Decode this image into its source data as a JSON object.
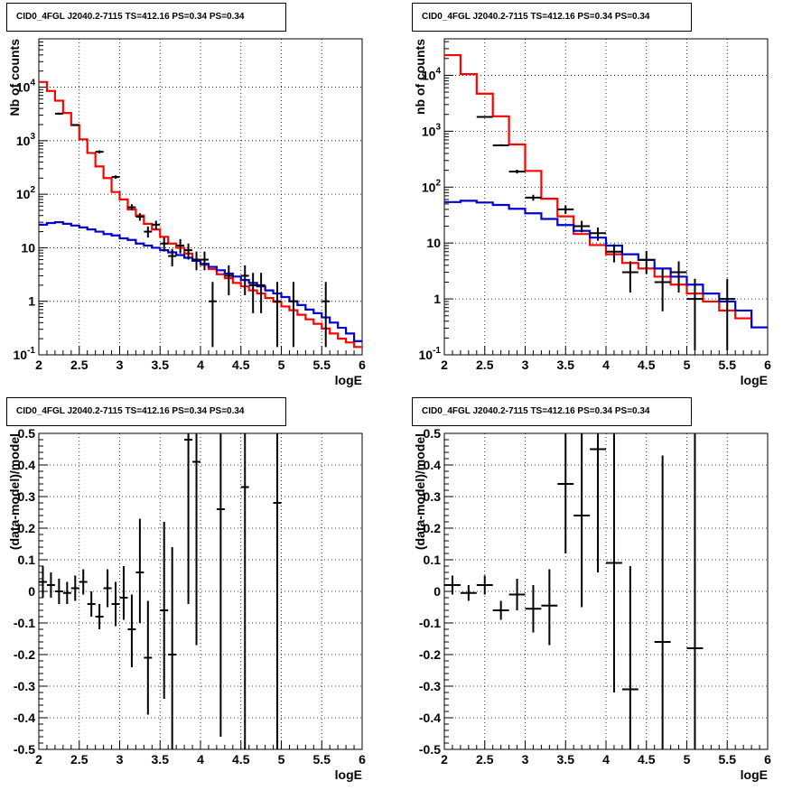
{
  "pad_title": "CID0_4FGL J2040.2-7115 TS=412.16 PS=0.34 PS=0.34",
  "colors": {
    "model_total": "#ff0000",
    "background": "#0000cc",
    "data": "#000000",
    "grid": "#000000"
  },
  "chart_data": [
    {
      "type": "line",
      "title": "CID0_4FGL J2040.2-7115 TS=412.16 PS=0.34 PS=0.34",
      "xlabel": "logE",
      "ylabel": "Nb of counts",
      "xlim": [
        2,
        6
      ],
      "ylim": [
        0.1,
        80000
      ],
      "yscale": "log",
      "grid": true,
      "xticks": [
        "2",
        "2.5",
        "3",
        "3.5",
        "4",
        "4.5",
        "5",
        "5.5",
        "6"
      ],
      "yticks": [
        {
          "v": 0.1,
          "label": "10^-1"
        },
        {
          "v": 1,
          "label": "1"
        },
        {
          "v": 10,
          "label": "10"
        },
        {
          "v": 100,
          "label": "10^2"
        },
        {
          "v": 1000,
          "label": "10^3"
        },
        {
          "v": 10000,
          "label": "10^4"
        }
      ],
      "bin_width": 0.1,
      "series": [
        {
          "kind": "step",
          "color": "red",
          "x": [
            2.0,
            2.1,
            2.2,
            2.3,
            2.4,
            2.5,
            2.6,
            2.7,
            2.8,
            2.9,
            3.0,
            3.1,
            3.2,
            3.3,
            3.4,
            3.5,
            3.6,
            3.7,
            3.8,
            3.9,
            4.0,
            4.1,
            4.2,
            4.3,
            4.4,
            4.5,
            4.6,
            4.7,
            4.8,
            4.9,
            5.0,
            5.1,
            5.2,
            5.3,
            5.4,
            5.5,
            5.6,
            5.7,
            5.8,
            5.9
          ],
          "values": [
            12500,
            8500,
            5600,
            3300,
            1960,
            1060,
            590,
            330,
            200,
            110,
            80,
            52,
            40,
            28,
            22,
            16,
            12,
            10,
            7.8,
            6.0,
            4.8,
            4.0,
            3.2,
            2.7,
            2.2,
            1.9,
            1.6,
            1.4,
            1.15,
            0.98,
            0.8,
            0.68,
            0.56,
            0.46,
            0.38,
            0.31,
            0.25,
            0.2,
            0.17,
            0.14
          ]
        },
        {
          "kind": "step",
          "color": "blue",
          "x": [
            2.0,
            2.1,
            2.2,
            2.3,
            2.4,
            2.5,
            2.6,
            2.7,
            2.8,
            2.9,
            3.0,
            3.1,
            3.2,
            3.3,
            3.4,
            3.5,
            3.6,
            3.7,
            3.8,
            3.9,
            4.0,
            4.1,
            4.2,
            4.3,
            4.4,
            4.5,
            4.6,
            4.7,
            4.8,
            4.9,
            5.0,
            5.1,
            5.2,
            5.3,
            5.4,
            5.5,
            5.6,
            5.7,
            5.8,
            5.9
          ],
          "values": [
            27,
            29,
            30,
            28,
            26,
            24,
            22,
            20,
            18,
            17,
            15,
            14,
            12,
            11,
            10,
            9,
            8.2,
            7.3,
            6.5,
            5.7,
            5.0,
            4.4,
            3.8,
            3.3,
            2.9,
            2.5,
            2.2,
            1.9,
            1.6,
            1.4,
            1.2,
            1.0,
            0.85,
            0.7,
            0.6,
            0.5,
            0.4,
            0.32,
            0.25,
            0.18
          ]
        },
        {
          "kind": "errorbars",
          "color": "black",
          "points": [
            {
              "x": 2.25,
              "y": 3200,
              "lo": 3050,
              "hi": 3350
            },
            {
              "x": 2.45,
              "y": 1960,
              "lo": 1880,
              "hi": 2040
            },
            {
              "x": 2.75,
              "y": 620,
              "lo": 580,
              "hi": 660
            },
            {
              "x": 2.95,
              "y": 210,
              "lo": 195,
              "hi": 225
            },
            {
              "x": 3.15,
              "y": 57,
              "lo": 50,
              "hi": 65
            },
            {
              "x": 3.25,
              "y": 38,
              "lo": 32,
              "hi": 44
            },
            {
              "x": 3.35,
              "y": 20,
              "lo": 15.5,
              "hi": 25
            },
            {
              "x": 3.45,
              "y": 27,
              "lo": 22,
              "hi": 32
            },
            {
              "x": 3.55,
              "y": 12,
              "lo": 8.5,
              "hi": 15.5
            },
            {
              "x": 3.65,
              "y": 7,
              "lo": 4.5,
              "hi": 9.5
            },
            {
              "x": 3.75,
              "y": 11,
              "lo": 7.8,
              "hi": 14.5
            },
            {
              "x": 3.85,
              "y": 9,
              "lo": 6,
              "hi": 12
            },
            {
              "x": 3.95,
              "y": 6,
              "lo": 3.8,
              "hi": 8.5
            },
            {
              "x": 4.05,
              "y": 6,
              "lo": 3.8,
              "hi": 8.5
            },
            {
              "x": 4.15,
              "y": 1,
              "lo": 0.14,
              "hi": 2.3
            },
            {
              "x": 4.35,
              "y": 3,
              "lo": 1.3,
              "hi": 4.7
            },
            {
              "x": 4.55,
              "y": 3,
              "lo": 1.3,
              "hi": 4.7
            },
            {
              "x": 4.65,
              "y": 2,
              "lo": 0.6,
              "hi": 3.4
            },
            {
              "x": 4.75,
              "y": 2,
              "lo": 0.6,
              "hi": 3.4
            },
            {
              "x": 4.95,
              "y": 1,
              "lo": 0.14,
              "hi": 2.3
            },
            {
              "x": 5.15,
              "y": 1,
              "lo": 0.14,
              "hi": 2.3
            },
            {
              "x": 5.55,
              "y": 1,
              "lo": 0.14,
              "hi": 2.3
            }
          ]
        }
      ]
    },
    {
      "type": "line",
      "title": "CID0_4FGL J2040.2-7115 TS=412.16 PS=0.34 PS=0.34",
      "xlabel": "logE",
      "ylabel": "nb of counts",
      "xlim": [
        2,
        6
      ],
      "ylim": [
        0.1,
        45000
      ],
      "yscale": "log",
      "grid": true,
      "xticks": [
        "2",
        "2.5",
        "3",
        "3.5",
        "4",
        "4.5",
        "5",
        "5.5",
        "6"
      ],
      "yticks": [
        {
          "v": 0.1,
          "label": "10^-1"
        },
        {
          "v": 1,
          "label": "1"
        },
        {
          "v": 10,
          "label": "10"
        },
        {
          "v": 100,
          "label": "10^2"
        },
        {
          "v": 1000,
          "label": "10^3"
        },
        {
          "v": 10000,
          "label": "10^4"
        }
      ],
      "bin_width": 0.2,
      "series": [
        {
          "kind": "step",
          "color": "red",
          "x": [
            2.0,
            2.2,
            2.4,
            2.6,
            2.8,
            3.0,
            3.2,
            3.4,
            3.6,
            3.8,
            4.0,
            4.2,
            4.4,
            4.6,
            4.8,
            5.0,
            5.2,
            5.4,
            5.6,
            5.8
          ],
          "values": [
            23000,
            10500,
            4700,
            1850,
            580,
            195,
            62,
            30,
            14.5,
            9.2,
            6.3,
            4.4,
            3.5,
            2.5,
            1.8,
            1.25,
            0.9,
            0.62,
            0.45,
            0.31
          ]
        },
        {
          "kind": "step",
          "color": "blue",
          "x": [
            2.0,
            2.2,
            2.4,
            2.6,
            2.8,
            3.0,
            3.2,
            3.4,
            3.6,
            3.8,
            4.0,
            4.2,
            4.4,
            4.6,
            4.8,
            5.0,
            5.2,
            5.4,
            5.6,
            5.8
          ],
          "values": [
            54,
            57,
            53,
            48,
            41,
            34,
            27,
            21,
            16.5,
            12.5,
            9,
            6.3,
            5.0,
            3.5,
            2.5,
            1.8,
            1.25,
            0.9,
            0.62,
            0.31
          ]
        },
        {
          "kind": "errorbars",
          "color": "black",
          "points": [
            {
              "x": 2.5,
              "y": 1800,
              "lo": 1750,
              "hi": 1860
            },
            {
              "x": 2.7,
              "y": 560,
              "lo": 535,
              "hi": 585
            },
            {
              "x": 2.9,
              "y": 190,
              "lo": 175,
              "hi": 205
            },
            {
              "x": 3.1,
              "y": 65,
              "lo": 57,
              "hi": 73
            },
            {
              "x": 3.5,
              "y": 40,
              "lo": 33,
              "hi": 47
            },
            {
              "x": 3.7,
              "y": 20,
              "lo": 15.5,
              "hi": 25
            },
            {
              "x": 3.9,
              "y": 15,
              "lo": 11,
              "hi": 19
            },
            {
              "x": 4.1,
              "y": 7,
              "lo": 4.5,
              "hi": 9.5
            },
            {
              "x": 4.3,
              "y": 3,
              "lo": 1.3,
              "hi": 4.7
            },
            {
              "x": 4.5,
              "y": 5,
              "lo": 2.8,
              "hi": 7.2
            },
            {
              "x": 4.7,
              "y": 2,
              "lo": 0.6,
              "hi": 3.4
            },
            {
              "x": 4.9,
              "y": 3,
              "lo": 1.3,
              "hi": 4.7
            },
            {
              "x": 5.1,
              "y": 1,
              "lo": 0.12,
              "hi": 2.3
            },
            {
              "x": 5.5,
              "y": 1,
              "lo": 0.12,
              "hi": 2.3
            }
          ]
        }
      ]
    },
    {
      "type": "scatter",
      "title": "CID0_4FGL J2040.2-7115 TS=412.16 PS=0.34 PS=0.34",
      "xlabel": "logE",
      "ylabel": "(data-model)/model",
      "xlim": [
        2,
        6
      ],
      "ylim": [
        -0.5,
        0.5
      ],
      "grid": true,
      "xticks": [
        "2",
        "2.5",
        "3",
        "3.5",
        "4",
        "4.5",
        "5",
        "5.5",
        "6"
      ],
      "yticks": [
        "-0.5",
        "-0.4",
        "-0.3",
        "-0.2",
        "-0.1",
        "0",
        "0.1",
        "0.2",
        "0.3",
        "0.4",
        "0.5"
      ],
      "bin_width": 0.1,
      "series": [
        {
          "kind": "errorbars",
          "color": "black",
          "points": [
            {
              "x": 2.05,
              "y": 0.03,
              "lo": -0.02,
              "hi": 0.08
            },
            {
              "x": 2.15,
              "y": 0.02,
              "lo": -0.02,
              "hi": 0.06
            },
            {
              "x": 2.25,
              "y": 0.0,
              "lo": -0.04,
              "hi": 0.04
            },
            {
              "x": 2.35,
              "y": -0.005,
              "lo": -0.04,
              "hi": 0.03
            },
            {
              "x": 2.45,
              "y": 0.01,
              "lo": -0.03,
              "hi": 0.05
            },
            {
              "x": 2.55,
              "y": 0.03,
              "lo": -0.01,
              "hi": 0.07
            },
            {
              "x": 2.65,
              "y": -0.04,
              "lo": -0.08,
              "hi": 0.0
            },
            {
              "x": 2.75,
              "y": -0.08,
              "lo": -0.12,
              "hi": -0.04
            },
            {
              "x": 2.85,
              "y": 0.01,
              "lo": -0.05,
              "hi": 0.07
            },
            {
              "x": 2.95,
              "y": -0.04,
              "lo": -0.11,
              "hi": 0.03
            },
            {
              "x": 3.05,
              "y": -0.02,
              "lo": -0.09,
              "hi": 0.08
            },
            {
              "x": 3.15,
              "y": -0.12,
              "lo": -0.24,
              "hi": -0.01
            },
            {
              "x": 3.25,
              "y": 0.06,
              "lo": -0.1,
              "hi": 0.23
            },
            {
              "x": 3.35,
              "y": -0.21,
              "lo": -0.39,
              "hi": -0.03
            },
            {
              "x": 3.55,
              "y": -0.06,
              "lo": -0.34,
              "hi": 0.22
            },
            {
              "x": 3.65,
              "y": -0.2,
              "lo": -0.5,
              "hi": 0.14
            },
            {
              "x": 3.85,
              "y": 0.48,
              "lo": -0.04,
              "hi": 0.5
            },
            {
              "x": 3.95,
              "y": 0.41,
              "lo": -0.17,
              "hi": 0.5
            },
            {
              "x": 4.25,
              "y": 0.26,
              "lo": -0.46,
              "hi": 0.5
            },
            {
              "x": 4.55,
              "y": 0.33,
              "lo": -0.5,
              "hi": 0.5
            },
            {
              "x": 4.95,
              "y": 0.28,
              "lo": -0.5,
              "hi": 0.5
            }
          ]
        }
      ]
    },
    {
      "type": "scatter",
      "title": "CID0_4FGL J2040.2-7115 TS=412.16 PS=0.34 PS=0.34",
      "xlabel": "logE",
      "ylabel": "(data-model)/model",
      "xlim": [
        2,
        6
      ],
      "ylim": [
        -0.5,
        0.5
      ],
      "grid": true,
      "xticks": [
        "2",
        "2.5",
        "3",
        "3.5",
        "4",
        "4.5",
        "5",
        "5.5",
        "6"
      ],
      "yticks": [
        "-0.5",
        "-0.4",
        "-0.3",
        "-0.2",
        "-0.1",
        "0",
        "0.1",
        "0.2",
        "0.3",
        "0.4",
        "0.5"
      ],
      "bin_width": 0.2,
      "series": [
        {
          "kind": "errorbars",
          "color": "black",
          "points": [
            {
              "x": 2.1,
              "y": 0.02,
              "lo": -0.01,
              "hi": 0.05
            },
            {
              "x": 2.3,
              "y": -0.005,
              "lo": -0.03,
              "hi": 0.02
            },
            {
              "x": 2.5,
              "y": 0.02,
              "lo": -0.01,
              "hi": 0.05
            },
            {
              "x": 2.7,
              "y": -0.06,
              "lo": -0.09,
              "hi": -0.03
            },
            {
              "x": 2.9,
              "y": -0.01,
              "lo": -0.06,
              "hi": 0.04
            },
            {
              "x": 3.1,
              "y": -0.055,
              "lo": -0.13,
              "hi": 0.02
            },
            {
              "x": 3.3,
              "y": -0.045,
              "lo": -0.17,
              "hi": 0.07
            },
            {
              "x": 3.5,
              "y": 0.34,
              "lo": 0.12,
              "hi": 0.5
            },
            {
              "x": 3.7,
              "y": 0.24,
              "lo": -0.05,
              "hi": 0.5
            },
            {
              "x": 3.9,
              "y": 0.45,
              "lo": 0.06,
              "hi": 0.5
            },
            {
              "x": 4.1,
              "y": 0.09,
              "lo": -0.32,
              "hi": 0.5
            },
            {
              "x": 4.3,
              "y": -0.31,
              "lo": -0.5,
              "hi": 0.08
            },
            {
              "x": 4.7,
              "y": -0.16,
              "lo": -0.5,
              "hi": 0.43
            },
            {
              "x": 5.1,
              "y": -0.18,
              "lo": -0.5,
              "hi": 0.5
            }
          ]
        }
      ]
    }
  ]
}
